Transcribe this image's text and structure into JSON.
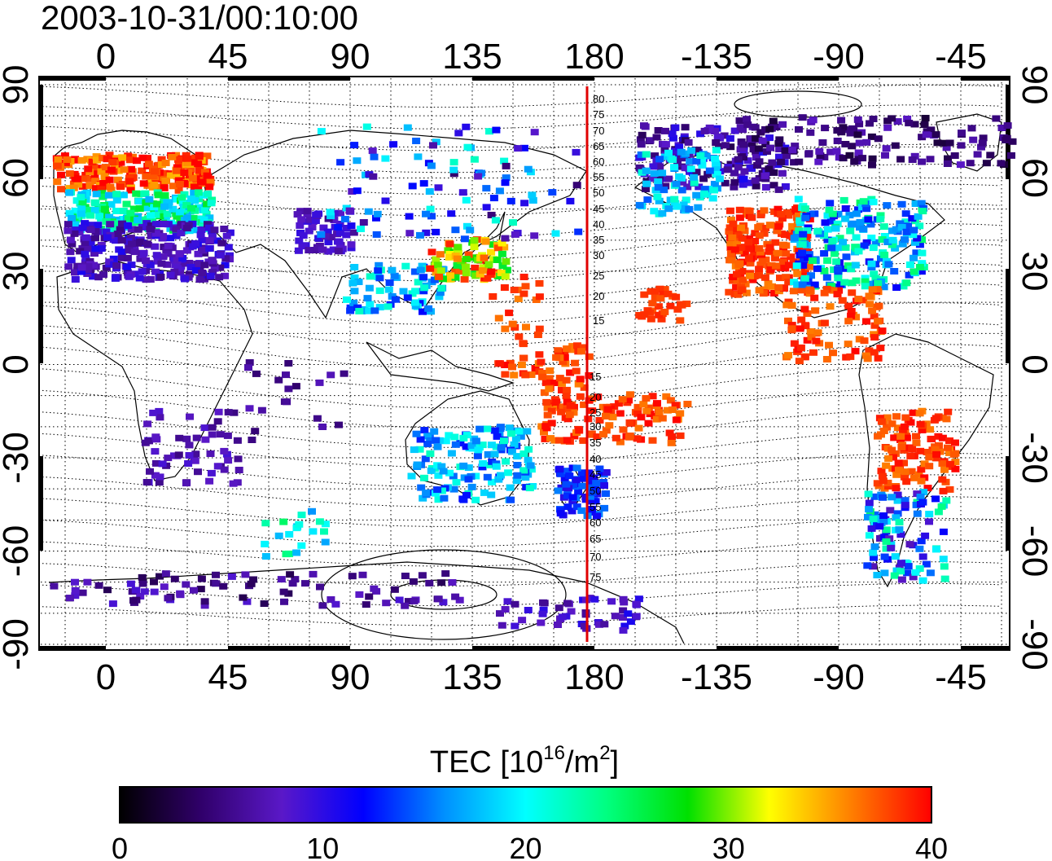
{
  "title": "2003-10-31/00:10:00",
  "map": {
    "lon_ticks": [
      "0",
      "45",
      "90",
      "135",
      "180",
      "-135",
      "-90",
      "-45"
    ],
    "lat_ticks": [
      "90",
      "60",
      "30",
      "0",
      "-30",
      "-60",
      "-90"
    ],
    "grid": true,
    "dateline_color": "#e00000",
    "contour_labels_north": [
      "80",
      "75",
      "70",
      "65",
      "60",
      "55",
      "50",
      "45",
      "40",
      "35",
      "30",
      "25",
      "20",
      "15"
    ],
    "contour_labels_south": [
      "15",
      "20",
      "25",
      "30",
      "35",
      "40",
      "45",
      "50",
      "55",
      "60",
      "65",
      "70",
      "75"
    ]
  },
  "colorbar": {
    "label": "TEC  [10",
    "label_sup": "16",
    "label_unit": "/m",
    "label_sup2": "2",
    "label_end": "]",
    "min": 0,
    "max": 40,
    "ticks": [
      "0",
      "10",
      "20",
      "30",
      "40"
    ],
    "stops": [
      "#000000",
      "#30006a",
      "#5a18c8",
      "#0000ff",
      "#0090ff",
      "#00ffff",
      "#00ff80",
      "#00e000",
      "#ffff00",
      "#ff8000",
      "#ff0000"
    ]
  }
}
